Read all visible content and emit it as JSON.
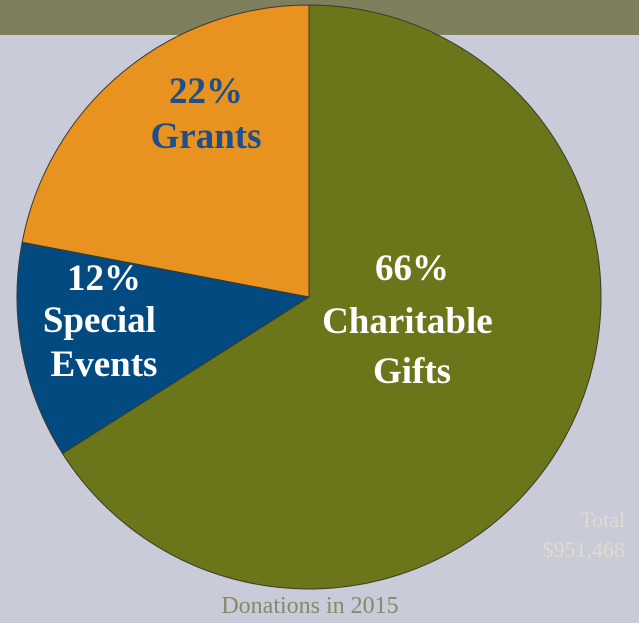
{
  "chart_data": {
    "type": "pie",
    "title": "Donations in 2015",
    "categories": [
      "Charitable Gifts",
      "Special Events",
      "Grants"
    ],
    "values": [
      66,
      12,
      22
    ],
    "value_labels": [
      "66%",
      "12%",
      "22%"
    ],
    "colors": [
      "#6b7519",
      "#024a80",
      "#e8921f"
    ],
    "total_label": "Total",
    "total": "$951,468"
  }
}
